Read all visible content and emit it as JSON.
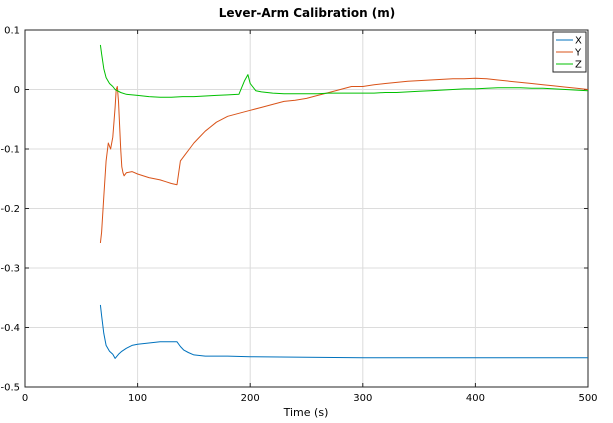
{
  "chart_data": {
    "type": "line",
    "title": "Lever-Arm Calibration (m)",
    "xlabel": "Time (s)",
    "ylabel": "",
    "xlim": [
      0,
      500
    ],
    "ylim": [
      -0.5,
      0.1
    ],
    "xticks": [
      0,
      100,
      200,
      300,
      400,
      500
    ],
    "yticks": [
      -0.5,
      -0.4,
      -0.3,
      -0.2,
      -0.1,
      0,
      0.1
    ],
    "grid": true,
    "legend_position": "top-right",
    "series": [
      {
        "name": "X",
        "color": "#0072BD",
        "x": [
          67,
          68,
          70,
          72,
          75,
          78,
          80,
          83,
          86,
          90,
          95,
          100,
          110,
          120,
          130,
          135,
          138,
          141,
          145,
          150,
          160,
          180,
          200,
          250,
          300,
          350,
          400,
          450,
          500
        ],
        "y": [
          -0.362,
          -0.38,
          -0.41,
          -0.43,
          -0.44,
          -0.445,
          -0.452,
          -0.445,
          -0.44,
          -0.435,
          -0.43,
          -0.428,
          -0.426,
          -0.424,
          -0.424,
          -0.424,
          -0.432,
          -0.438,
          -0.442,
          -0.446,
          -0.448,
          -0.448,
          -0.449,
          -0.45,
          -0.451,
          -0.451,
          -0.451,
          -0.451,
          -0.451
        ]
      },
      {
        "name": "Y",
        "color": "#D95319",
        "x": [
          67,
          68,
          70,
          72,
          74,
          76,
          78,
          80,
          81,
          82,
          83,
          84,
          85,
          86,
          87,
          88,
          90,
          95,
          100,
          110,
          120,
          125,
          130,
          135,
          138,
          142,
          146,
          150,
          155,
          160,
          170,
          180,
          190,
          200,
          210,
          220,
          230,
          240,
          250,
          260,
          270,
          280,
          290,
          300,
          310,
          320,
          330,
          340,
          350,
          360,
          370,
          380,
          390,
          400,
          410,
          420,
          430,
          440,
          450,
          460,
          470,
          480,
          490,
          500
        ],
        "y": [
          -0.258,
          -0.24,
          -0.18,
          -0.12,
          -0.09,
          -0.1,
          -0.08,
          -0.03,
          0.0,
          0.005,
          -0.02,
          -0.06,
          -0.1,
          -0.13,
          -0.14,
          -0.145,
          -0.14,
          -0.138,
          -0.142,
          -0.148,
          -0.152,
          -0.155,
          -0.158,
          -0.16,
          -0.12,
          -0.11,
          -0.1,
          -0.09,
          -0.08,
          -0.07,
          -0.055,
          -0.045,
          -0.04,
          -0.035,
          -0.03,
          -0.025,
          -0.02,
          -0.018,
          -0.015,
          -0.01,
          -0.005,
          0.0,
          0.005,
          0.005,
          0.008,
          0.01,
          0.012,
          0.014,
          0.015,
          0.016,
          0.017,
          0.018,
          0.018,
          0.019,
          0.018,
          0.016,
          0.014,
          0.012,
          0.01,
          0.008,
          0.006,
          0.004,
          0.002,
          0.0
        ]
      },
      {
        "name": "Z",
        "color": "#00C000",
        "x": [
          67,
          68,
          70,
          72,
          75,
          78,
          80,
          85,
          90,
          100,
          110,
          120,
          130,
          140,
          150,
          160,
          170,
          180,
          190,
          195,
          198,
          200,
          205,
          210,
          220,
          230,
          240,
          250,
          260,
          270,
          280,
          290,
          300,
          310,
          320,
          330,
          340,
          350,
          360,
          370,
          380,
          390,
          400,
          410,
          420,
          430,
          440,
          450,
          460,
          470,
          480,
          490,
          500
        ],
        "y": [
          0.075,
          0.06,
          0.035,
          0.02,
          0.01,
          0.005,
          0.0,
          -0.005,
          -0.008,
          -0.01,
          -0.012,
          -0.013,
          -0.013,
          -0.012,
          -0.012,
          -0.011,
          -0.01,
          -0.009,
          -0.008,
          0.015,
          0.025,
          0.01,
          -0.002,
          -0.004,
          -0.006,
          -0.007,
          -0.007,
          -0.007,
          -0.007,
          -0.006,
          -0.006,
          -0.006,
          -0.006,
          -0.006,
          -0.005,
          -0.005,
          -0.004,
          -0.003,
          -0.002,
          -0.001,
          0.0,
          0.001,
          0.001,
          0.002,
          0.003,
          0.003,
          0.003,
          0.002,
          0.002,
          0.001,
          0.0,
          -0.001,
          -0.002
        ]
      }
    ]
  }
}
